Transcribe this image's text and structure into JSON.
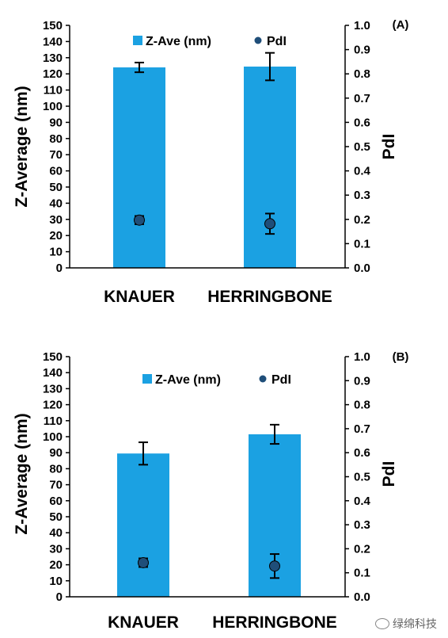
{
  "chart_data": [
    {
      "type": "bar",
      "panel_label": "(A)",
      "categories": [
        "KNAUER",
        "HERRINGBONE"
      ],
      "series": [
        {
          "name": "Z-Ave (nm)",
          "axis": "left",
          "values": [
            124,
            124.5
          ],
          "errors": [
            3,
            8.5
          ]
        },
        {
          "name": "PdI",
          "axis": "right",
          "values": [
            0.197,
            0.182
          ],
          "errors": [
            0.017,
            0.042
          ]
        }
      ],
      "ylabel": "Z-Average (nm)",
      "y2label": "PdI",
      "ylim": [
        0,
        150
      ],
      "y2lim": [
        0,
        1.0
      ],
      "yticks": [
        "0",
        "10",
        "20",
        "30",
        "40",
        "50",
        "60",
        "70",
        "80",
        "90",
        "100",
        "110",
        "120",
        "130",
        "140",
        "150"
      ],
      "y2ticks": [
        "0.0",
        "0.1",
        "0.2",
        "0.3",
        "0.4",
        "0.5",
        "0.6",
        "0.7",
        "0.8",
        "0.9",
        "1.0"
      ],
      "legend_placement": "top",
      "grid": false
    },
    {
      "type": "bar",
      "panel_label": "(B)",
      "categories": [
        "KNAUER",
        "HERRINGBONE"
      ],
      "series": [
        {
          "name": "Z-Ave (nm)",
          "axis": "left",
          "values": [
            89.5,
            101.5
          ],
          "errors": [
            7,
            6
          ]
        },
        {
          "name": "PdI",
          "axis": "right",
          "values": [
            0.142,
            0.128
          ],
          "errors": [
            0.018,
            0.05
          ]
        }
      ],
      "ylabel": "Z-Average (nm)",
      "y2label": "PdI",
      "ylim": [
        0,
        150
      ],
      "y2lim": [
        0,
        1.0
      ],
      "yticks": [
        "0",
        "10",
        "20",
        "30",
        "40",
        "50",
        "60",
        "70",
        "80",
        "90",
        "100",
        "110",
        "120",
        "130",
        "140",
        "150"
      ],
      "y2ticks": [
        "0.0",
        "0.1",
        "0.2",
        "0.3",
        "0.4",
        "0.5",
        "0.6",
        "0.7",
        "0.8",
        "0.9",
        "1.0"
      ],
      "legend_placement": "top",
      "grid": false
    }
  ],
  "colors": {
    "bar": "#1ba1e2",
    "marker": "#1f4e79",
    "axis": "#000000"
  },
  "watermark": {
    "text": "绿绵科技",
    "icon": "chat-bubble-icon"
  }
}
